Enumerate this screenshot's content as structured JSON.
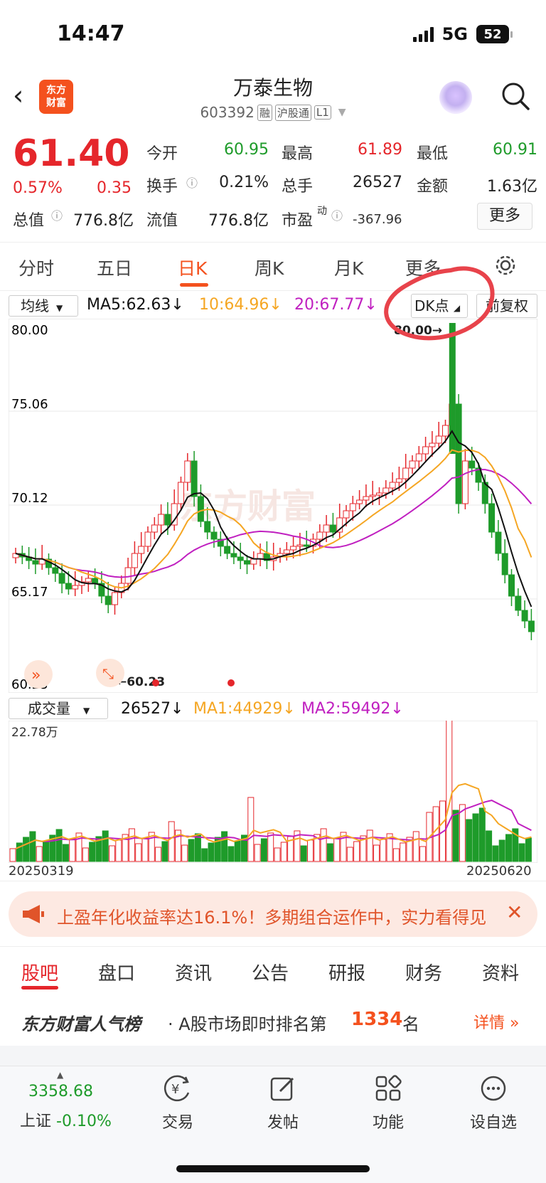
{
  "status_bar": {
    "time": "14:47",
    "network": "5G",
    "battery": "52"
  },
  "header": {
    "logo_line1": "东方",
    "logo_line2": "财富",
    "stock_name": "万泰生物",
    "stock_code": "603392",
    "tags": [
      "融",
      "沪股通",
      "L1"
    ]
  },
  "quote": {
    "price": "61.40",
    "change_pct": "0.57%",
    "change_amt": "0.35",
    "open_label": "今开",
    "open": "60.95",
    "high_label": "最高",
    "high": "61.89",
    "low_label": "最低",
    "low": "60.91",
    "turnover_label": "换手",
    "turnover": "0.21%",
    "volume_label": "总手",
    "volume": "26527",
    "amount_label": "金额",
    "amount": "1.63亿",
    "mktcap_label": "总值",
    "mktcap": "776.8亿",
    "float_label": "流值",
    "float": "776.8亿",
    "pe_label": "市盈",
    "pe_sup": "动",
    "pe": "-367.96",
    "more_label": "更多"
  },
  "period_tabs": [
    "分时",
    "五日",
    "日K",
    "周K",
    "月K",
    "更多"
  ],
  "ma_row": {
    "select": "均线",
    "ma5": "MA5:62.63↓",
    "ma10": "10:64.96↓",
    "ma20": "20:67.77↓",
    "dk": "DK点",
    "fq": "前复权"
  },
  "chart_data": [
    {
      "type": "candlestick",
      "y_ticks": [
        "80.00",
        "75.06",
        "70.12",
        "65.17",
        "60.23"
      ],
      "ylim": [
        60.23,
        80.0
      ],
      "max_label": "80.00→",
      "min_label": "←60.23",
      "watermark": "东方财富",
      "series": [
        {
          "name": "MA5",
          "color": "#111111"
        },
        {
          "name": "MA10",
          "color": "#f5a623"
        },
        {
          "name": "MA20",
          "color": "#c020c0"
        }
      ]
    },
    {
      "type": "bar",
      "ymax_label": "22.78万",
      "x_start": "20250319",
      "x_end": "20250620",
      "series": [
        {
          "name": "MA1",
          "color": "#f5a623"
        },
        {
          "name": "MA2",
          "color": "#c020c0"
        }
      ]
    }
  ],
  "volume_row": {
    "select": "成交量",
    "vol": "26527↓",
    "ma1": "MA1:44929↓",
    "ma2": "MA2:59492↓"
  },
  "banner": {
    "text": "上盈年化收益率达16.1%！多期组合运作中，实力看得见"
  },
  "section_tabs": [
    "股吧",
    "盘口",
    "资讯",
    "公告",
    "研报",
    "财务",
    "资料"
  ],
  "rank": {
    "brand": "东方财富人气榜",
    "text": "· A股市场即时排名第",
    "rank": "1334",
    "unit": "名",
    "detail": "详情"
  },
  "bottom_bar": {
    "index_value": "3358.68",
    "index_name": "上证",
    "index_chg": "-0.10%",
    "items": [
      "交易",
      "发帖",
      "功能",
      "设自选"
    ]
  },
  "colors": {
    "up": "#e5262b",
    "down": "#1e9b2a",
    "accent": "#f4511e"
  }
}
